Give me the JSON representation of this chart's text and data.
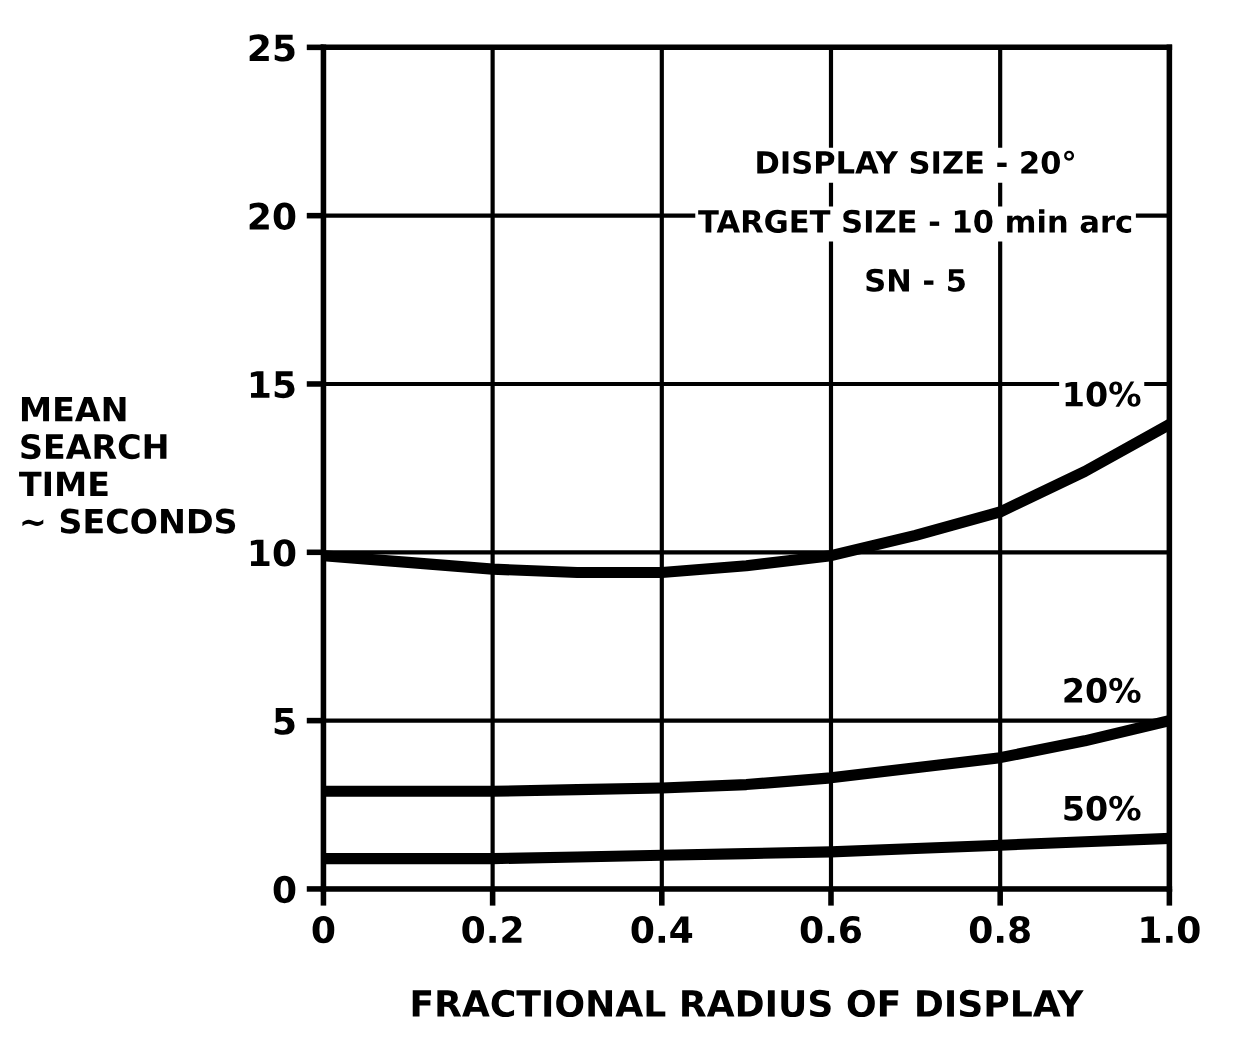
{
  "chart_data": {
    "type": "line",
    "xlabel": "FRACTIONAL RADIUS OF DISPLAY",
    "ylabel": "MEAN\nSEARCH\nTIME\n~ SECONDS",
    "annotations": [
      "DISPLAY SIZE - 20°",
      "TARGET SIZE - 10 min arc",
      "SN - 5"
    ],
    "x": [
      0,
      0.1,
      0.2,
      0.3,
      0.4,
      0.5,
      0.6,
      0.7,
      0.8,
      0.9,
      1.0
    ],
    "series": [
      {
        "name": "10%",
        "color": "#000000",
        "values": [
          9.9,
          9.7,
          9.5,
          9.4,
          9.4,
          9.6,
          9.9,
          10.5,
          11.2,
          12.4,
          13.8
        ]
      },
      {
        "name": "20%",
        "color": "#000000",
        "values": [
          2.9,
          2.9,
          2.9,
          2.95,
          3.0,
          3.1,
          3.3,
          3.6,
          3.9,
          4.4,
          5.0
        ]
      },
      {
        "name": "50%",
        "color": "#000000",
        "values": [
          0.9,
          0.9,
          0.9,
          0.95,
          1.0,
          1.05,
          1.1,
          1.2,
          1.3,
          1.4,
          1.5
        ]
      }
    ],
    "xlim": [
      0,
      1.0
    ],
    "ylim": [
      0,
      25
    ],
    "xticks": [
      0,
      0.2,
      0.4,
      0.6,
      0.8,
      {
        "value": 1.0,
        "label": "1.0"
      }
    ],
    "yticks": [
      0,
      5,
      10,
      15,
      20,
      25
    ],
    "grid": true,
    "legend": false,
    "marker": "none",
    "line_style": "solid"
  }
}
